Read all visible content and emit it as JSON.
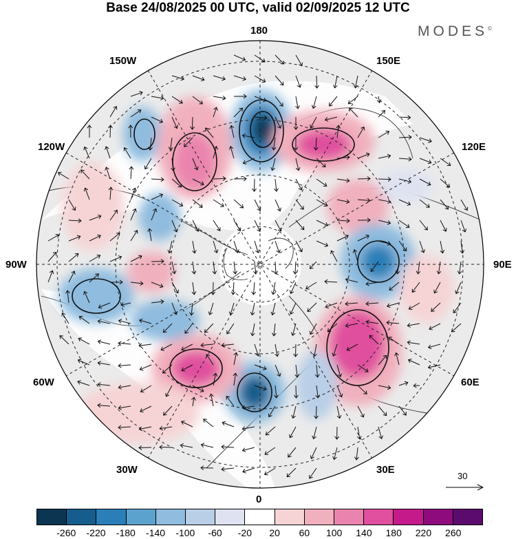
{
  "title": "Base 24/08/2025 00 UTC, valid 02/09/2025 12 UTC",
  "brand": "MODES",
  "brand_mark": "©",
  "longitude_labels": {
    "top": "180",
    "top_left": "150W",
    "top_right": "150E",
    "upper_left": "120W",
    "upper_right": "120E",
    "left": "90W",
    "right": "90E",
    "lower_left": "60W",
    "lower_right": "60E",
    "bottom_left": "30W",
    "bottom_right": "30E",
    "bottom": "0"
  },
  "vector_scale_label": "30",
  "colorbar": {
    "colors": [
      "#0b3550",
      "#155d8c",
      "#2a7fb8",
      "#5ca2cf",
      "#8fbcdf",
      "#b9cfe7",
      "#dfe3f1",
      "#ffffff",
      "#f6d4d6",
      "#f1b0bd",
      "#ea84ae",
      "#e0509e",
      "#c41a8a",
      "#8e0b7e",
      "#5b0b6e"
    ],
    "ticks": [
      "-260",
      "-220",
      "-180",
      "-140",
      "-100",
      "-60",
      "-20",
      "20",
      "60",
      "100",
      "140",
      "180",
      "220",
      "260"
    ]
  },
  "anomaly_centers": [
    {
      "lon_label": "170W",
      "lat": 55,
      "value": -200
    },
    {
      "lon_label": "150W",
      "lat": 45,
      "value": -120
    },
    {
      "lon_label": "155W",
      "lat": 60,
      "value": 150
    },
    {
      "lon_label": "150E",
      "lat": 58,
      "value": 160
    },
    {
      "lon_label": "120E",
      "lat": 55,
      "value": 100
    },
    {
      "lon_label": "90E",
      "lat": 60,
      "value": -180
    },
    {
      "lon_label": "60E",
      "lat": 55,
      "value": 170
    },
    {
      "lon_label": "10E",
      "lat": 58,
      "value": -180
    },
    {
      "lon_label": "40W",
      "lat": 55,
      "value": 180
    },
    {
      "lon_label": "80W",
      "lat": 65,
      "value": -130
    },
    {
      "lon_label": "95W",
      "lat": 60,
      "value": -140
    },
    {
      "lon_label": "100W",
      "lat": 45,
      "value": 80
    }
  ]
}
